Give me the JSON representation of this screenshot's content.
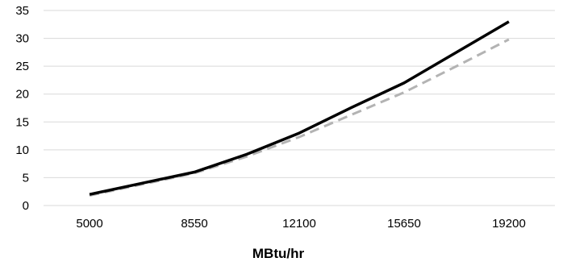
{
  "chart_data": {
    "type": "line",
    "title": "",
    "xlabel": "MBtu/hr",
    "ylabel": "",
    "ylim": [
      0,
      35
    ],
    "y_ticks": [
      0,
      5,
      10,
      15,
      20,
      25,
      30,
      35
    ],
    "x_tick_labels": [
      "5000",
      "8550",
      "12100",
      "15650",
      "19200"
    ],
    "x_ticks": [
      5000,
      8550,
      12100,
      15650,
      19200
    ],
    "grid": "horizontal",
    "legend": "none",
    "series": [
      {
        "style": "solid",
        "color": "#000000",
        "x": [
          5000,
          6775,
          8550,
          10325,
          12100,
          13875,
          15650,
          17425,
          19200
        ],
        "y": [
          2,
          4,
          6,
          9.2,
          13,
          17.6,
          22,
          27.5,
          33
        ]
      },
      {
        "style": "dashed",
        "color": "#b3b3b3",
        "x": [
          5000,
          6775,
          8550,
          10325,
          12100,
          13875,
          15650,
          17425,
          19200
        ],
        "y": [
          1.8,
          3.8,
          5.8,
          8.8,
          12.3,
          16.3,
          20.3,
          25,
          29.8
        ]
      }
    ]
  }
}
